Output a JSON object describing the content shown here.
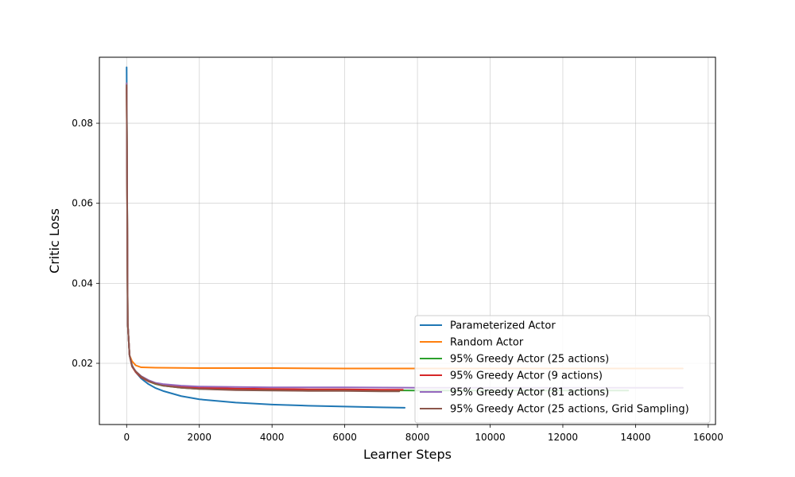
{
  "chart_data": {
    "type": "line",
    "title": "",
    "xlabel": "Learner Steps",
    "ylabel": "Critic Loss",
    "xlim": [
      -750,
      16200
    ],
    "ylim": [
      0.0047,
      0.0965
    ],
    "x_ticks": [
      0,
      2000,
      4000,
      6000,
      8000,
      10000,
      12000,
      14000,
      16000
    ],
    "y_ticks": [
      0.02,
      0.04,
      0.06,
      0.08
    ],
    "x_tick_labels": [
      "0",
      "2000",
      "4000",
      "6000",
      "8000",
      "10000",
      "12000",
      "14000",
      "16000"
    ],
    "y_tick_labels": [
      "0.02",
      "0.04",
      "0.06",
      "0.08"
    ],
    "grid": true,
    "legend_position": "bottom-right",
    "series": [
      {
        "name": "Parameterized Actor",
        "color": "#1f77b4",
        "x": [
          0,
          30,
          80,
          150,
          250,
          400,
          600,
          800,
          1000,
          1500,
          2000,
          3000,
          4000,
          5000,
          6000,
          7000,
          7650
        ],
        "y": [
          0.094,
          0.03,
          0.022,
          0.0195,
          0.0178,
          0.0162,
          0.0148,
          0.0138,
          0.0131,
          0.0118,
          0.011,
          0.0102,
          0.0097,
          0.0094,
          0.0092,
          0.009,
          0.0089
        ]
      },
      {
        "name": "Random Actor",
        "color": "#ff7f0e",
        "x": [
          0,
          30,
          80,
          150,
          250,
          400,
          800,
          2000,
          4000,
          6000,
          8000,
          10000,
          12000,
          14000,
          15300
        ],
        "y": [
          0.09,
          0.03,
          0.022,
          0.0205,
          0.0195,
          0.019,
          0.0189,
          0.0188,
          0.0188,
          0.0187,
          0.0187,
          0.0187,
          0.0187,
          0.0187,
          0.0187
        ]
      },
      {
        "name": "95% Greedy Actor (25 actions)",
        "color": "#2ca02c",
        "x": [
          0,
          30,
          80,
          150,
          250,
          400,
          600,
          800,
          1000,
          1500,
          2000,
          3000,
          4000,
          6000,
          8000,
          10000,
          12000,
          13800
        ],
        "y": [
          0.09,
          0.03,
          0.022,
          0.0192,
          0.0178,
          0.0165,
          0.0155,
          0.0148,
          0.0144,
          0.0139,
          0.0136,
          0.0134,
          0.0133,
          0.0133,
          0.0132,
          0.0132,
          0.0132,
          0.0132
        ]
      },
      {
        "name": "95% Greedy Actor (9 actions)",
        "color": "#d62728",
        "x": [
          0,
          30,
          80,
          150,
          250,
          400,
          600,
          800,
          1000,
          1500,
          2000,
          3000,
          4000,
          5000,
          6000,
          7000,
          7600
        ],
        "y": [
          0.089,
          0.03,
          0.022,
          0.0192,
          0.0178,
          0.0165,
          0.0155,
          0.0149,
          0.0145,
          0.0141,
          0.0139,
          0.0137,
          0.0136,
          0.0135,
          0.0135,
          0.0134,
          0.0134
        ]
      },
      {
        "name": "95% Greedy Actor (81 actions)",
        "color": "#9467bd",
        "x": [
          0,
          30,
          80,
          150,
          250,
          400,
          600,
          800,
          1000,
          1500,
          2000,
          3000,
          4000,
          6000,
          8000,
          10000,
          12000,
          14000,
          15300
        ],
        "y": [
          0.09,
          0.03,
          0.022,
          0.0193,
          0.018,
          0.0168,
          0.0158,
          0.0151,
          0.0148,
          0.0144,
          0.0142,
          0.0141,
          0.014,
          0.014,
          0.0139,
          0.0139,
          0.0139,
          0.0139,
          0.0139
        ]
      },
      {
        "name": "95% Greedy Actor (25 actions, Grid Sampling)",
        "color": "#8c564b",
        "x": [
          0,
          30,
          80,
          150,
          250,
          400,
          600,
          800,
          1000,
          1500,
          2000,
          3000,
          4000,
          5000,
          6000,
          7000,
          7500
        ],
        "y": [
          0.0895,
          0.03,
          0.022,
          0.0193,
          0.018,
          0.0167,
          0.0156,
          0.0149,
          0.0144,
          0.0139,
          0.0136,
          0.0133,
          0.0132,
          0.0131,
          0.0131,
          0.013,
          0.013
        ]
      }
    ]
  }
}
